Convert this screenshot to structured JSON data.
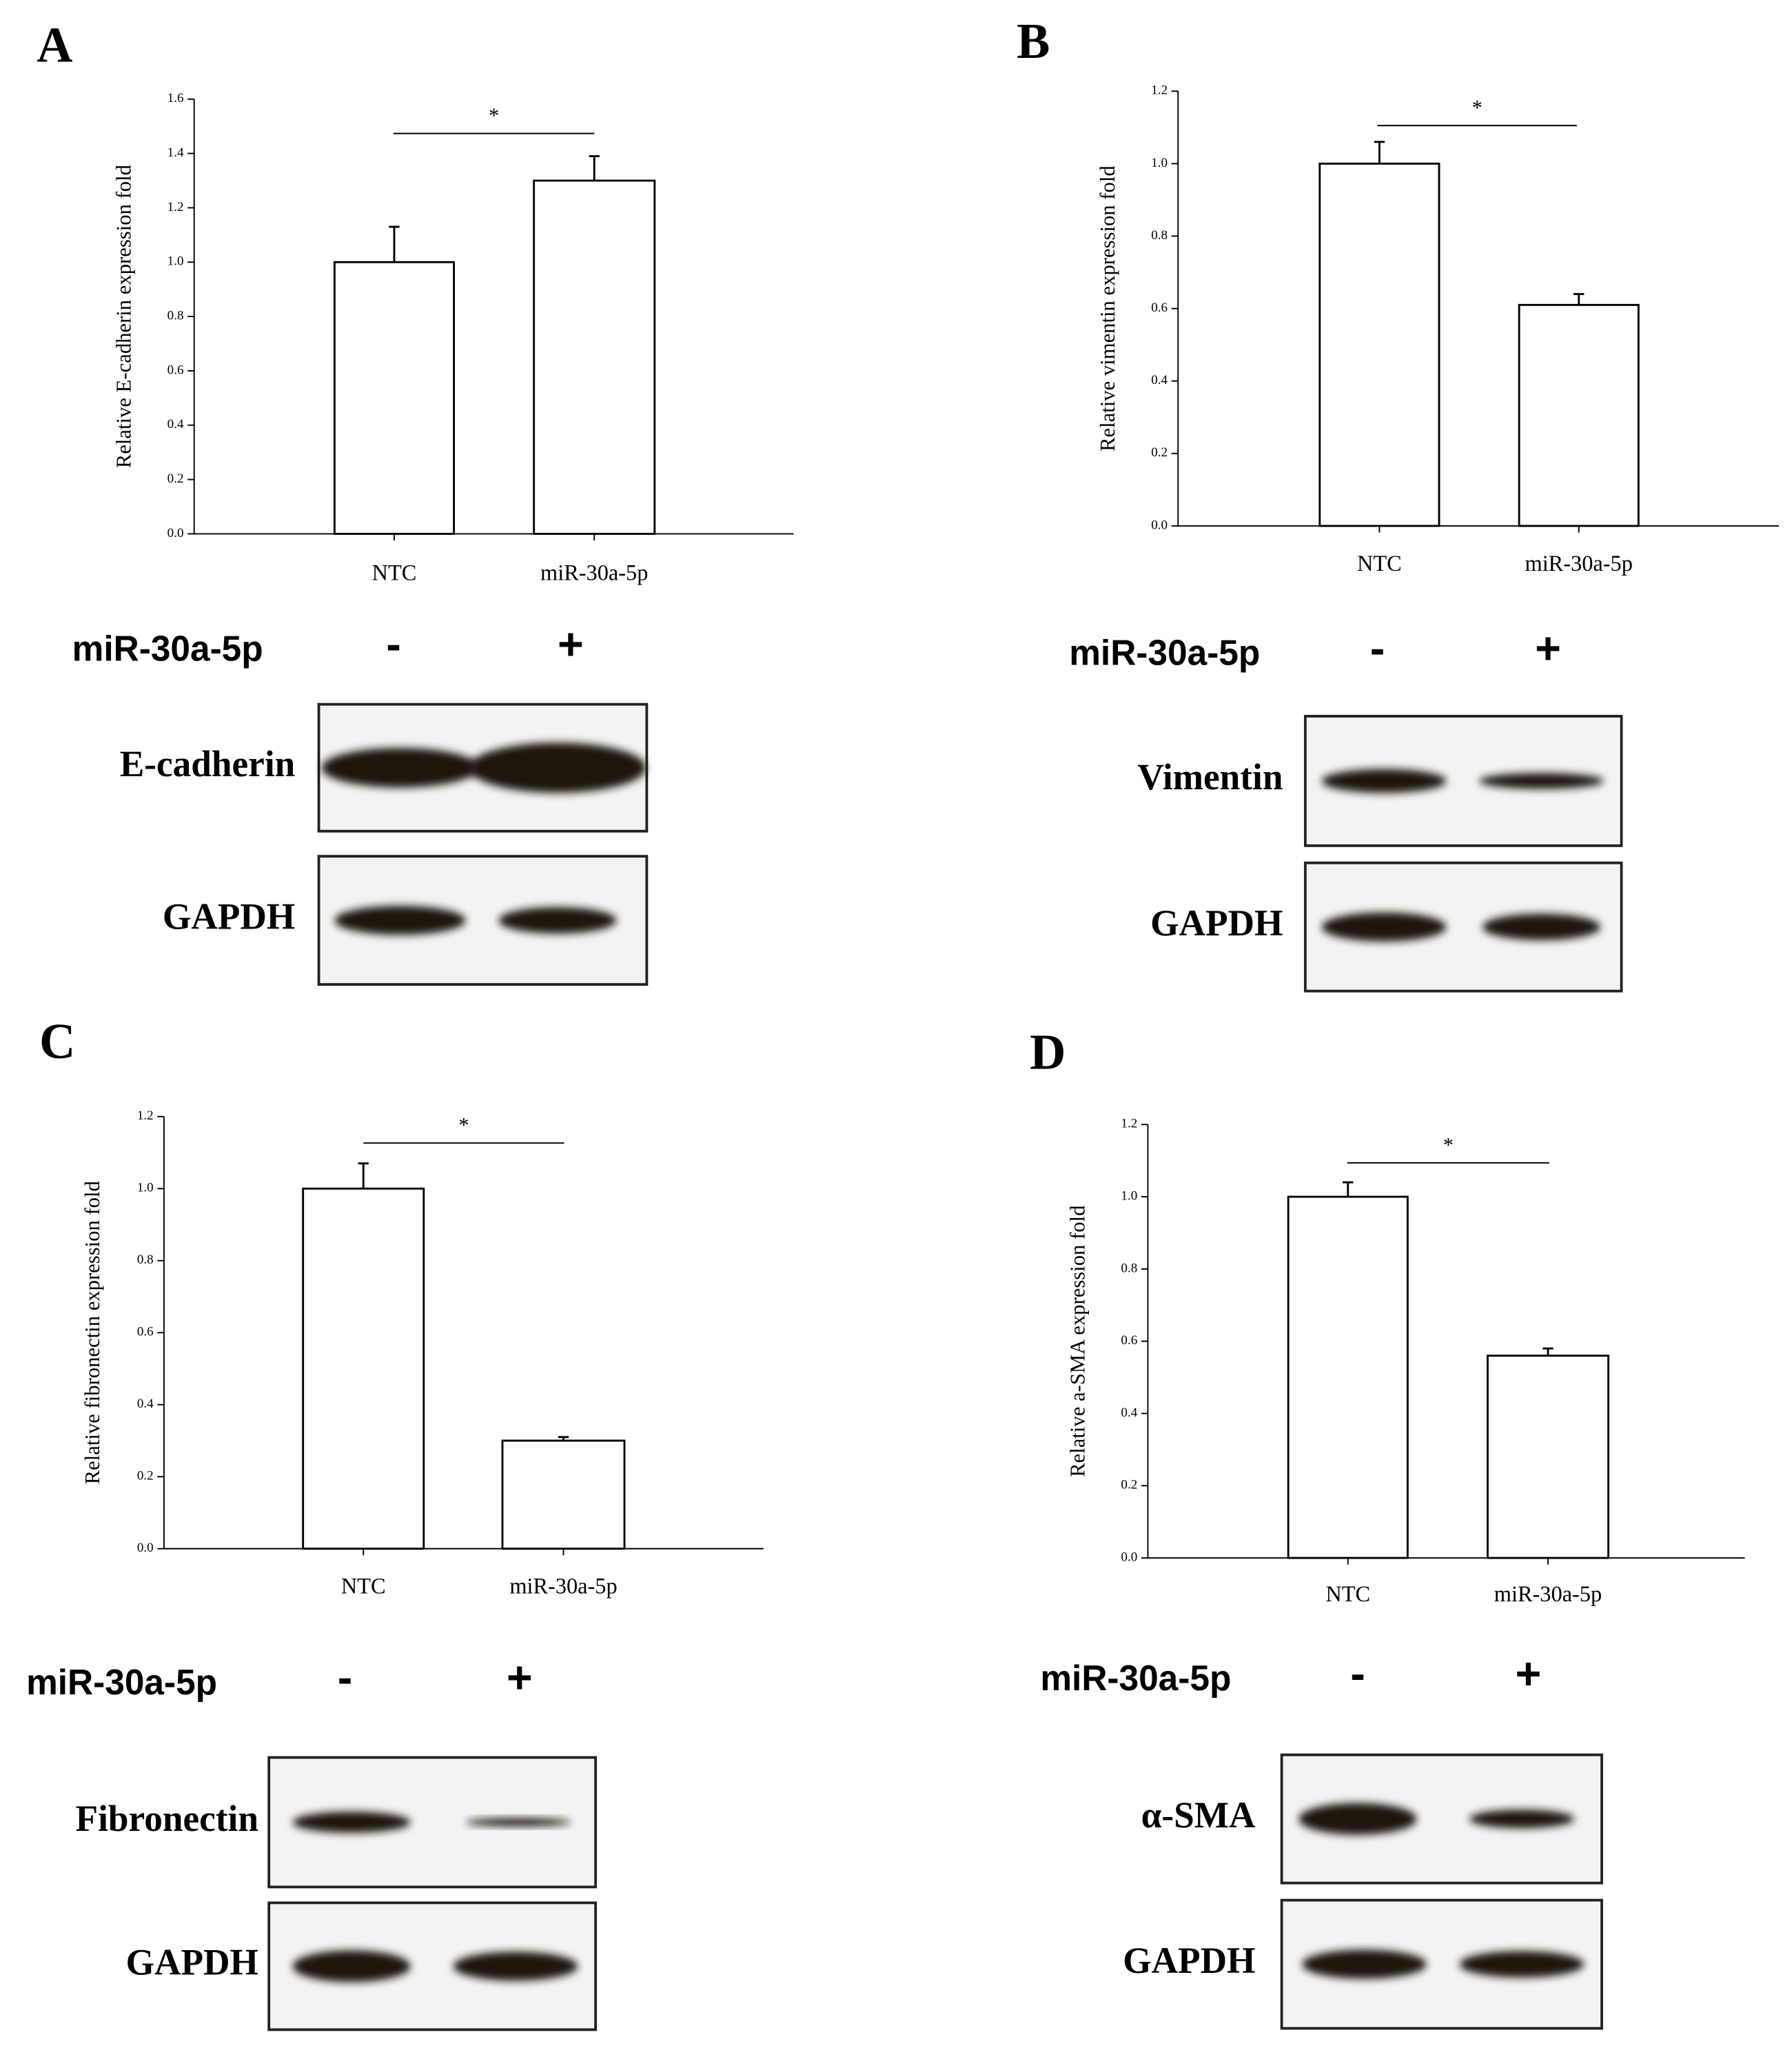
{
  "chart_data": [
    {
      "type": "bar",
      "panel": "A",
      "y_label": "Relative E-cadherin expression fold",
      "categories": [
        "NTC",
        "miR-30a-5p"
      ],
      "values": [
        1.0,
        1.3
      ],
      "errors": [
        0.13,
        0.09
      ],
      "color": "#ffffff",
      "ylim": [
        0,
        1.6
      ],
      "yticks": [
        {
          "value": 0,
          "label": "0.0"
        },
        0.2,
        0.4,
        0.6,
        0.8,
        {
          "value": 1,
          "label": "1.0"
        },
        1.2,
        1.4,
        1.6
      ],
      "significance": "*",
      "blot": {
        "treatment": "miR-30a-5p",
        "lanes": [
          "-",
          "+"
        ],
        "proteins": [
          "E-cadherin",
          "GAPDH"
        ]
      }
    },
    {
      "type": "bar",
      "panel": "B",
      "y_label": "Relative vimentin expression fold",
      "categories": [
        "NTC",
        "miR-30a-5p"
      ],
      "values": [
        1.0,
        0.61
      ],
      "errors": [
        0.06,
        0.03
      ],
      "color": "#ffffff",
      "ylim": [
        0,
        1.2
      ],
      "yticks": [
        {
          "value": 0,
          "label": "0.0"
        },
        0.2,
        0.4,
        0.6,
        0.8,
        {
          "value": 1,
          "label": "1.0"
        },
        1.2
      ],
      "significance": "*",
      "blot": {
        "treatment": "miR-30a-5p",
        "lanes": [
          "-",
          "+"
        ],
        "proteins": [
          "Vimentin",
          "GAPDH"
        ]
      }
    },
    {
      "type": "bar",
      "panel": "C",
      "y_label": "Relative fibronectin expression fold",
      "categories": [
        "NTC",
        "miR-30a-5p"
      ],
      "values": [
        1.0,
        0.3
      ],
      "errors": [
        0.07,
        0.01
      ],
      "color": "#ffffff",
      "ylim": [
        0,
        1.2
      ],
      "yticks": [
        {
          "value": 0,
          "label": "0.0"
        },
        0.2,
        0.4,
        0.6,
        0.8,
        {
          "value": 1,
          "label": "1.0"
        },
        1.2
      ],
      "significance": "*",
      "blot": {
        "treatment": "miR-30a-5p",
        "lanes": [
          "-",
          "+"
        ],
        "proteins": [
          "Fibronectin",
          "GAPDH"
        ]
      }
    },
    {
      "type": "bar",
      "panel": "D",
      "y_label": "Relative a-SMA expression fold",
      "categories": [
        "NTC",
        "miR-30a-5p"
      ],
      "values": [
        1.0,
        0.56
      ],
      "errors": [
        0.04,
        0.02
      ],
      "color": "#ffffff",
      "ylim": [
        0,
        1.2
      ],
      "yticks": [
        {
          "value": 0,
          "label": "0.0"
        },
        0.2,
        0.4,
        0.6,
        0.8,
        {
          "value": 1,
          "label": "1.0"
        },
        1.2
      ],
      "significance": "*",
      "blot": {
        "treatment": "miR-30a-5p",
        "lanes": [
          "-",
          "+"
        ],
        "proteins": [
          "α-SMA",
          "GAPDH"
        ]
      }
    }
  ]
}
